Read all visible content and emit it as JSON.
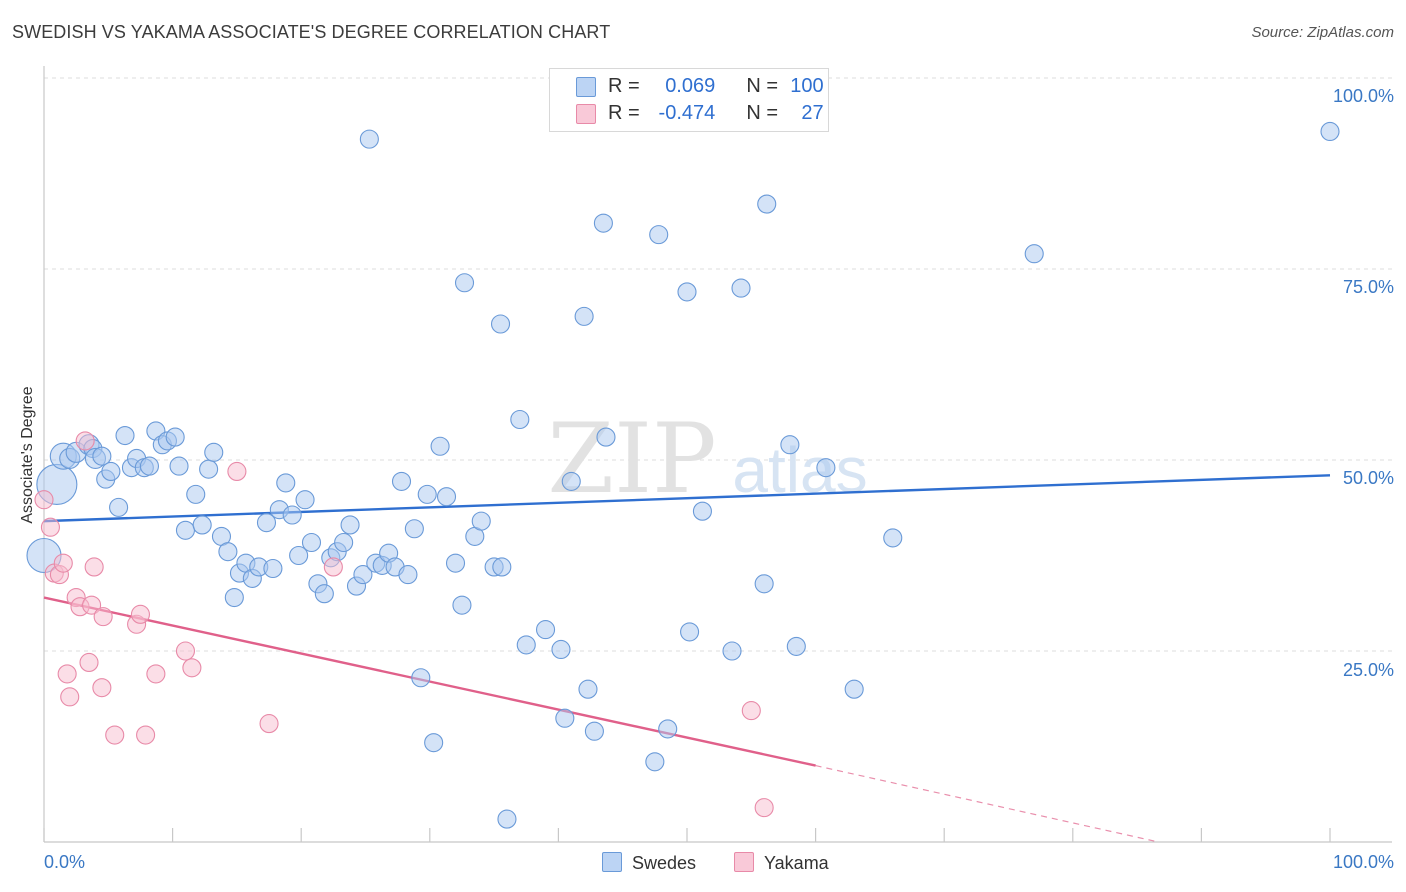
{
  "title": "SWEDISH VS YAKAMA ASSOCIATE'S DEGREE CORRELATION CHART",
  "source": "Source: ZipAtlas.com",
  "watermark": {
    "zip": "ZIP",
    "atlas": "atlas"
  },
  "legend": {
    "rows": [
      {
        "r_label": "R =",
        "r_value": "0.069",
        "n_label": "N =",
        "n_value": "100"
      },
      {
        "r_label": "R =",
        "r_value": "-0.474",
        "n_label": "N =",
        "n_value": "27"
      }
    ]
  },
  "bottom_legend": [
    "Swedes",
    "Yakama"
  ],
  "colors": {
    "swedes_fill": "#a9c8f0",
    "swedes_stroke": "#6a9ad8",
    "swedes_line": "#2f6fd0",
    "yakama_fill": "#f7bdd0",
    "yakama_stroke": "#e88aa8",
    "yakama_line": "#e0608a",
    "tick_text": "#3a78c4",
    "grid": "#dddddd"
  },
  "chart_data": {
    "type": "scatter",
    "title": "SWEDISH VS YAKAMA ASSOCIATE'S DEGREE CORRELATION CHART",
    "xlabel": "",
    "ylabel": "Associate's Degree",
    "xlim": [
      0,
      100
    ],
    "ylim": [
      0,
      100
    ],
    "x_tick_labels": [
      "0.0%",
      "100.0%"
    ],
    "y_tick_labels": [
      "100.0%",
      "75.0%",
      "50.0%",
      "25.0%"
    ],
    "y_ticks": [
      100,
      75,
      50,
      25
    ],
    "series": [
      {
        "name": "Swedes",
        "r": 0.069,
        "n": 100,
        "trend": {
          "x0": 0,
          "y0": 42.0,
          "x1": 100,
          "y1": 48.0
        },
        "points": [
          [
            1.0,
            46.8,
            20
          ],
          [
            0.0,
            37.5,
            17
          ],
          [
            1.5,
            50.5,
            13
          ],
          [
            2.0,
            50.2,
            10
          ],
          [
            2.5,
            51.0,
            10
          ],
          [
            3.5,
            52.0,
            10
          ],
          [
            3.8,
            51.5,
            9
          ],
          [
            4.0,
            50.2,
            10
          ],
          [
            4.5,
            50.5,
            9
          ],
          [
            4.8,
            47.5,
            9
          ],
          [
            5.2,
            48.5,
            9
          ],
          [
            5.8,
            43.8,
            9
          ],
          [
            6.3,
            53.2,
            9
          ],
          [
            6.8,
            49.0,
            9
          ],
          [
            7.2,
            50.2,
            9
          ],
          [
            7.8,
            49.0,
            9
          ],
          [
            8.2,
            49.2,
            9
          ],
          [
            8.7,
            53.8,
            9
          ],
          [
            9.2,
            52.0,
            9
          ],
          [
            9.6,
            52.5,
            9
          ],
          [
            10.2,
            53.0,
            9
          ],
          [
            10.5,
            49.2,
            9
          ],
          [
            11.0,
            40.8,
            9
          ],
          [
            11.8,
            45.5,
            9
          ],
          [
            12.3,
            41.5,
            9
          ],
          [
            12.8,
            48.8,
            9
          ],
          [
            13.2,
            51.0,
            9
          ],
          [
            13.8,
            40.0,
            9
          ],
          [
            14.3,
            38.0,
            9
          ],
          [
            14.8,
            32.0,
            9
          ],
          [
            15.2,
            35.2,
            9
          ],
          [
            15.7,
            36.5,
            9
          ],
          [
            16.2,
            34.5,
            9
          ],
          [
            16.7,
            36.0,
            9
          ],
          [
            17.3,
            41.8,
            9
          ],
          [
            17.8,
            35.8,
            9
          ],
          [
            18.3,
            43.5,
            9
          ],
          [
            18.8,
            47.0,
            9
          ],
          [
            19.3,
            42.8,
            9
          ],
          [
            19.8,
            37.5,
            9
          ],
          [
            20.3,
            44.8,
            9
          ],
          [
            20.8,
            39.2,
            9
          ],
          [
            21.3,
            33.8,
            9
          ],
          [
            21.8,
            32.5,
            9
          ],
          [
            22.3,
            37.2,
            9
          ],
          [
            22.8,
            38.0,
            9
          ],
          [
            23.3,
            39.2,
            9
          ],
          [
            23.8,
            41.5,
            9
          ],
          [
            24.3,
            33.5,
            9
          ],
          [
            24.8,
            35.0,
            9
          ],
          [
            25.3,
            92.0,
            9
          ],
          [
            25.8,
            36.5,
            9
          ],
          [
            26.3,
            36.2,
            9
          ],
          [
            26.8,
            37.8,
            9
          ],
          [
            27.3,
            36.0,
            9
          ],
          [
            27.8,
            47.2,
            9
          ],
          [
            28.3,
            35.0,
            9
          ],
          [
            28.8,
            41.0,
            9
          ],
          [
            29.3,
            21.5,
            9
          ],
          [
            29.8,
            45.5,
            9
          ],
          [
            30.3,
            13.0,
            9
          ],
          [
            30.8,
            51.8,
            9
          ],
          [
            31.3,
            45.2,
            9
          ],
          [
            32.0,
            36.5,
            9
          ],
          [
            32.5,
            31.0,
            9
          ],
          [
            32.7,
            73.2,
            9
          ],
          [
            33.5,
            40.0,
            9
          ],
          [
            34.0,
            42.0,
            9
          ],
          [
            35.0,
            36.0,
            9
          ],
          [
            35.5,
            67.8,
            9
          ],
          [
            35.6,
            36.0,
            9
          ],
          [
            36.0,
            3.0,
            9
          ],
          [
            37.0,
            55.3,
            9
          ],
          [
            37.5,
            25.8,
            9
          ],
          [
            39.0,
            27.8,
            9
          ],
          [
            40.2,
            25.2,
            9
          ],
          [
            40.5,
            16.2,
            9
          ],
          [
            41.0,
            47.2,
            9
          ],
          [
            42.0,
            68.8,
            9
          ],
          [
            42.3,
            20.0,
            9
          ],
          [
            42.8,
            14.5,
            9
          ],
          [
            43.5,
            81.0,
            9
          ],
          [
            43.7,
            53.0,
            9
          ],
          [
            47.5,
            10.5,
            9
          ],
          [
            47.8,
            79.5,
            9
          ],
          [
            48.5,
            14.8,
            9
          ],
          [
            50.0,
            72.0,
            9
          ],
          [
            50.2,
            27.5,
            9
          ],
          [
            51.2,
            43.3,
            9
          ],
          [
            53.5,
            25.0,
            9
          ],
          [
            54.2,
            72.5,
            9
          ],
          [
            56.0,
            33.8,
            9
          ],
          [
            56.2,
            83.5,
            9
          ],
          [
            58.0,
            52.0,
            9
          ],
          [
            58.5,
            25.6,
            9
          ],
          [
            60.8,
            49.0,
            9
          ],
          [
            63.0,
            20.0,
            9
          ],
          [
            66.0,
            39.8,
            9
          ],
          [
            77.0,
            77.0,
            9
          ],
          [
            100.0,
            93.0,
            9
          ]
        ]
      },
      {
        "name": "Yakama",
        "r": -0.474,
        "n": 27,
        "trend": {
          "x0": 0,
          "y0": 32.0,
          "x1": 60,
          "y1": 10.0,
          "dashed_to": {
            "x": 100,
            "y": -5.0
          }
        },
        "points": [
          [
            0.0,
            44.8,
            9
          ],
          [
            0.5,
            41.2,
            9
          ],
          [
            0.8,
            35.2,
            9
          ],
          [
            1.2,
            35.0,
            9
          ],
          [
            1.5,
            36.5,
            9
          ],
          [
            1.8,
            22.0,
            9
          ],
          [
            2.0,
            19.0,
            9
          ],
          [
            2.5,
            32.0,
            9
          ],
          [
            2.8,
            30.8,
            9
          ],
          [
            3.2,
            52.5,
            9
          ],
          [
            3.5,
            23.5,
            9
          ],
          [
            3.7,
            31.0,
            9
          ],
          [
            3.9,
            36.0,
            9
          ],
          [
            4.5,
            20.2,
            9
          ],
          [
            4.6,
            29.5,
            9
          ],
          [
            5.5,
            14.0,
            9
          ],
          [
            7.2,
            28.5,
            9
          ],
          [
            7.5,
            29.8,
            9
          ],
          [
            7.9,
            14.0,
            9
          ],
          [
            8.7,
            22.0,
            9
          ],
          [
            11.0,
            25.0,
            9
          ],
          [
            11.5,
            22.8,
            9
          ],
          [
            15.0,
            48.5,
            9
          ],
          [
            17.5,
            15.5,
            9
          ],
          [
            22.5,
            36.0,
            9
          ],
          [
            55.0,
            17.2,
            9
          ],
          [
            56.0,
            4.5,
            9
          ]
        ]
      }
    ]
  }
}
